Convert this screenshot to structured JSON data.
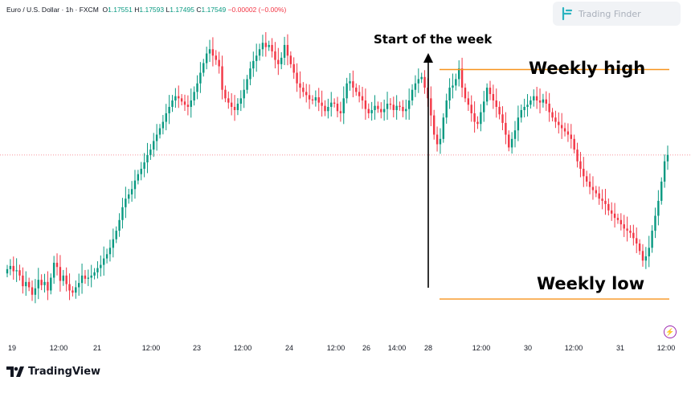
{
  "header": {
    "symbol": "Euro / U.S. Dollar · 1h · FXCM",
    "open_label": "O",
    "open": "1.17551",
    "high_label": "H",
    "high": "1.17593",
    "low_label": "L",
    "low": "1.17495",
    "close_label": "C",
    "close": "1.17549",
    "change": "−0.00002 (−0.00%)"
  },
  "brand": {
    "trading_finder": "Trading Finder",
    "tradingview": "TradingView"
  },
  "colors": {
    "up": "#089981",
    "down": "#f23645",
    "level_line": "#f7941d",
    "price_line": "#f23645"
  },
  "icons": {
    "bolt": "lightning-bolt-icon"
  },
  "chart_data": {
    "type": "candlestick",
    "title": "",
    "annotations": {
      "start_of_week": "Start of the week",
      "weekly_high": "Weekly high",
      "weekly_low": "Weekly low"
    },
    "x_tick_labels": [
      "19",
      "12:00",
      "21",
      "12:00",
      "23",
      "12:00",
      "24",
      "12:00",
      "26",
      "14:00",
      "28",
      "12:00",
      "30",
      "12:00",
      "31",
      "12:00"
    ],
    "last_price": 1.17549,
    "weekly_high": 1.1835,
    "weekly_low": 1.162,
    "closes": [
      1.1648,
      1.1651,
      1.1646,
      1.1647,
      1.1642,
      1.1632,
      1.1636,
      1.1631,
      1.1624,
      1.163,
      1.1638,
      1.1633,
      1.1636,
      1.1628,
      1.164,
      1.1654,
      1.165,
      1.1637,
      1.1642,
      1.1634,
      1.1628,
      1.1626,
      1.1631,
      1.1635,
      1.1642,
      1.1639,
      1.164,
      1.1642,
      1.1645,
      1.1649,
      1.1652,
      1.1658,
      1.1662,
      1.1668,
      1.1676,
      1.1684,
      1.1694,
      1.1706,
      1.1714,
      1.1718,
      1.1723,
      1.1731,
      1.1737,
      1.1742,
      1.1748,
      1.1755,
      1.176,
      1.1768,
      1.1774,
      1.178,
      1.1786,
      1.1794,
      1.18,
      1.1806,
      1.181,
      1.1808,
      1.1805,
      1.1802,
      1.18,
      1.1806,
      1.1814,
      1.1822,
      1.1832,
      1.1841,
      1.185,
      1.1854,
      1.1848,
      1.1844,
      1.1838,
      1.1816,
      1.1808,
      1.1804,
      1.18,
      1.1797,
      1.1803,
      1.1808,
      1.1816,
      1.1826,
      1.1836,
      1.1843,
      1.1848,
      1.1854,
      1.186,
      1.1856,
      1.1858,
      1.1852,
      1.1844,
      1.184,
      1.1846,
      1.1858,
      1.1848,
      1.184,
      1.1832,
      1.1822,
      1.1818,
      1.1814,
      1.1811,
      1.1807,
      1.1806,
      1.1809,
      1.1804,
      1.1801,
      1.1796,
      1.18,
      1.1804,
      1.1803,
      1.1796,
      1.1794,
      1.1808,
      1.1822,
      1.1824,
      1.1818,
      1.1814,
      1.181,
      1.1806,
      1.1798,
      1.1794,
      1.1797,
      1.1801,
      1.1798,
      1.1795,
      1.1798,
      1.1803,
      1.1802,
      1.1797,
      1.1801,
      1.18,
      1.1796,
      1.1798,
      1.1806,
      1.1816,
      1.1822,
      1.1826,
      1.1828,
      1.1818,
      1.1808,
      1.1792,
      1.1774,
      1.1765,
      1.177,
      1.179,
      1.1806,
      1.1818,
      1.182,
      1.1826,
      1.1836,
      1.1818,
      1.1808,
      1.1802,
      1.1794,
      1.1786,
      1.1784,
      1.1795,
      1.1805,
      1.1818,
      1.1812,
      1.1806,
      1.18,
      1.1793,
      1.1785,
      1.1774,
      1.1762,
      1.177,
      1.1778,
      1.179,
      1.1797,
      1.18,
      1.1802,
      1.1806,
      1.181,
      1.1806,
      1.1804,
      1.1807,
      1.1803,
      1.1795,
      1.179,
      1.1786,
      1.1783,
      1.178,
      1.1777,
      1.1774,
      1.177,
      1.176,
      1.1749,
      1.1742,
      1.1735,
      1.173,
      1.1725,
      1.1722,
      1.1719,
      1.1714,
      1.1712,
      1.1709,
      1.1703,
      1.17,
      1.1696,
      1.1694,
      1.169,
      1.1686,
      1.1684,
      1.1682,
      1.1677,
      1.1672,
      1.1665,
      1.1656,
      1.166,
      1.1668,
      1.1684,
      1.1698,
      1.1712,
      1.173,
      1.1749,
      1.1755
    ]
  }
}
